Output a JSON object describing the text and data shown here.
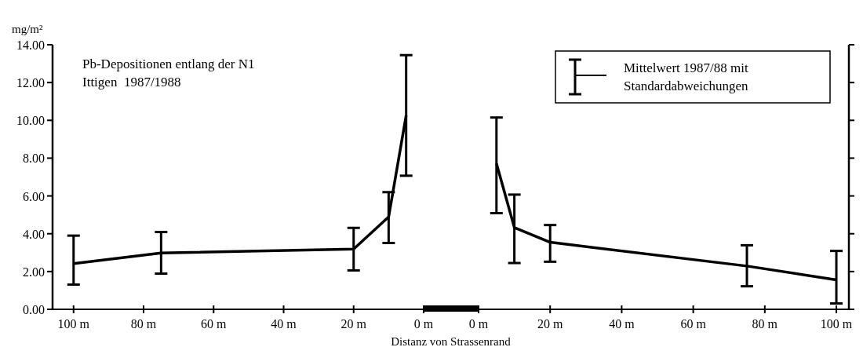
{
  "chart_data": [
    {
      "type": "line",
      "title": "Pb-Depositionen entlang der N1",
      "subtitle": "Ittigen  1987/1988",
      "ylabel": "mg/m²",
      "xlabel": "Distanz von Strassenrand",
      "x": [
        100,
        75,
        20,
        10,
        5
      ],
      "xlim": [
        106,
        0
      ],
      "xticks": [
        {
          "value": 100,
          "label": "100 m"
        },
        {
          "value": 80,
          "label": "80 m"
        },
        {
          "value": 60,
          "label": "60 m"
        },
        {
          "value": 40,
          "label": "40 m"
        },
        {
          "value": 20,
          "label": "20 m"
        },
        {
          "value": 0,
          "label": "0 m"
        }
      ],
      "ylim": [
        0,
        14
      ],
      "yticks": [
        {
          "value": 0,
          "label": "0.00"
        },
        {
          "value": 2,
          "label": "2.00"
        },
        {
          "value": 4,
          "label": "4.00"
        },
        {
          "value": 6,
          "label": "6.00"
        },
        {
          "value": 8,
          "label": "8.00"
        },
        {
          "value": 10,
          "label": "10.00"
        },
        {
          "value": 12,
          "label": "12.00"
        },
        {
          "value": 14,
          "label": "14.00"
        }
      ],
      "series": [
        {
          "color": "#000000",
          "values": [
            2.42,
            2.98,
            3.19,
            4.89,
            10.26
          ],
          "errors": [
            [
              1.31,
              3.9
            ],
            [
              1.89,
              4.09
            ],
            [
              2.06,
              4.31
            ],
            [
              3.51,
              6.2
            ],
            [
              7.07,
              13.45
            ]
          ]
        }
      ],
      "marker": "none",
      "grid": false,
      "legend": false
    },
    {
      "type": "line",
      "x": [
        5,
        10,
        20,
        75,
        100
      ],
      "xlim": [
        0,
        103.5
      ],
      "xticks": [
        {
          "value": 0,
          "label": "0 m"
        },
        {
          "value": 20,
          "label": "20 m"
        },
        {
          "value": 40,
          "label": "40 m"
        },
        {
          "value": 60,
          "label": "60 m"
        },
        {
          "value": 80,
          "label": "80 m"
        },
        {
          "value": 100,
          "label": "100 m"
        }
      ],
      "ylim": [
        0,
        14
      ],
      "yticks": [
        {
          "value": 0,
          "label": null
        },
        {
          "value": 2,
          "label": null
        },
        {
          "value": 4,
          "label": null
        },
        {
          "value": 6,
          "label": null
        },
        {
          "value": 8,
          "label": null
        },
        {
          "value": 10,
          "label": null
        },
        {
          "value": 12,
          "label": null
        },
        {
          "value": 14,
          "label": null
        }
      ],
      "tick_labels": "x",
      "series": [
        {
          "name": "Mittelwert 1987/88 mit Standardabweichungen",
          "color": "#000000",
          "values": [
            7.72,
            4.33,
            3.55,
            2.29,
            1.56
          ],
          "errors": [
            [
              5.09,
              10.15
            ],
            [
              2.45,
              6.07
            ],
            [
              2.52,
              4.46
            ],
            [
              1.22,
              3.39
            ],
            [
              0.31,
              3.09
            ]
          ]
        }
      ],
      "marker": "none",
      "grid": false,
      "legend": "top right"
    }
  ]
}
